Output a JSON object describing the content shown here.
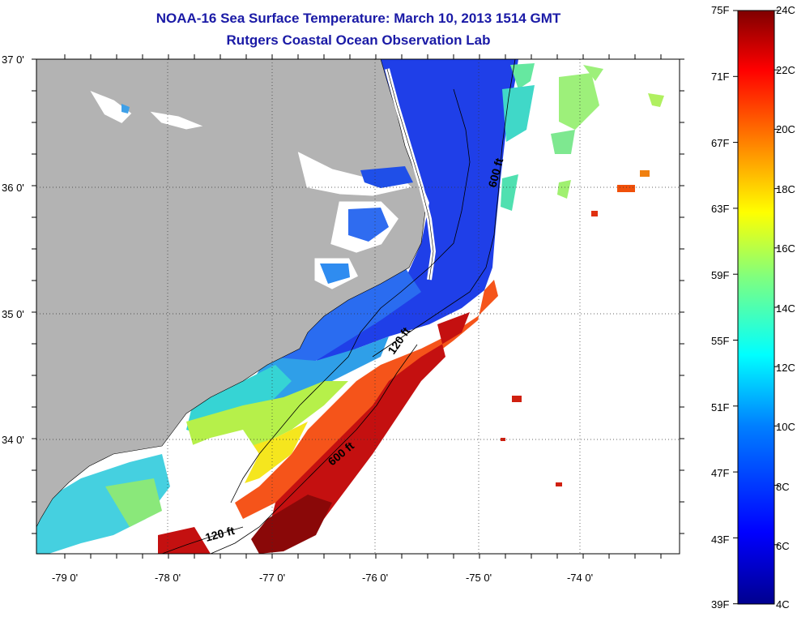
{
  "header": {
    "title": "NOAA-16 Sea Surface Temperature:  March 10, 2013 1514 GMT",
    "subtitle": "Rutgers Coastal Ocean Observation Lab"
  },
  "map": {
    "lat_labels": [
      "37 0'",
      "36 0'",
      "35 0'",
      "34 0'"
    ],
    "lon_labels": [
      "-79 0'",
      "-78 0'",
      "-77 0'",
      "-76 0'",
      "-75 0'",
      "-74 0'"
    ],
    "lon_range": [
      -79.3,
      -73.1
    ],
    "lat_range": [
      33.1,
      37.0
    ],
    "land_color": "#b3b3b3",
    "cloud_color": "#ffffff",
    "isobaths": [
      "120 ft",
      "600 ft",
      "600 ft",
      "120 ft"
    ]
  },
  "colorbar": {
    "fahrenheit_labels": [
      "75F",
      "71F",
      "67F",
      "63F",
      "59F",
      "55F",
      "51F",
      "47F",
      "43F",
      "39F"
    ],
    "celsius_labels": [
      "24C",
      "22C",
      "20C",
      "18C",
      "16C",
      "14C",
      "12C",
      "10C",
      "8C",
      "6C",
      "4C"
    ],
    "range_c": [
      4,
      24
    ],
    "colors": [
      "#00008f",
      "#0000ff",
      "#007fff",
      "#00ffff",
      "#7fff7f",
      "#ffff00",
      "#ff7f00",
      "#ff0000",
      "#7f0000"
    ]
  }
}
